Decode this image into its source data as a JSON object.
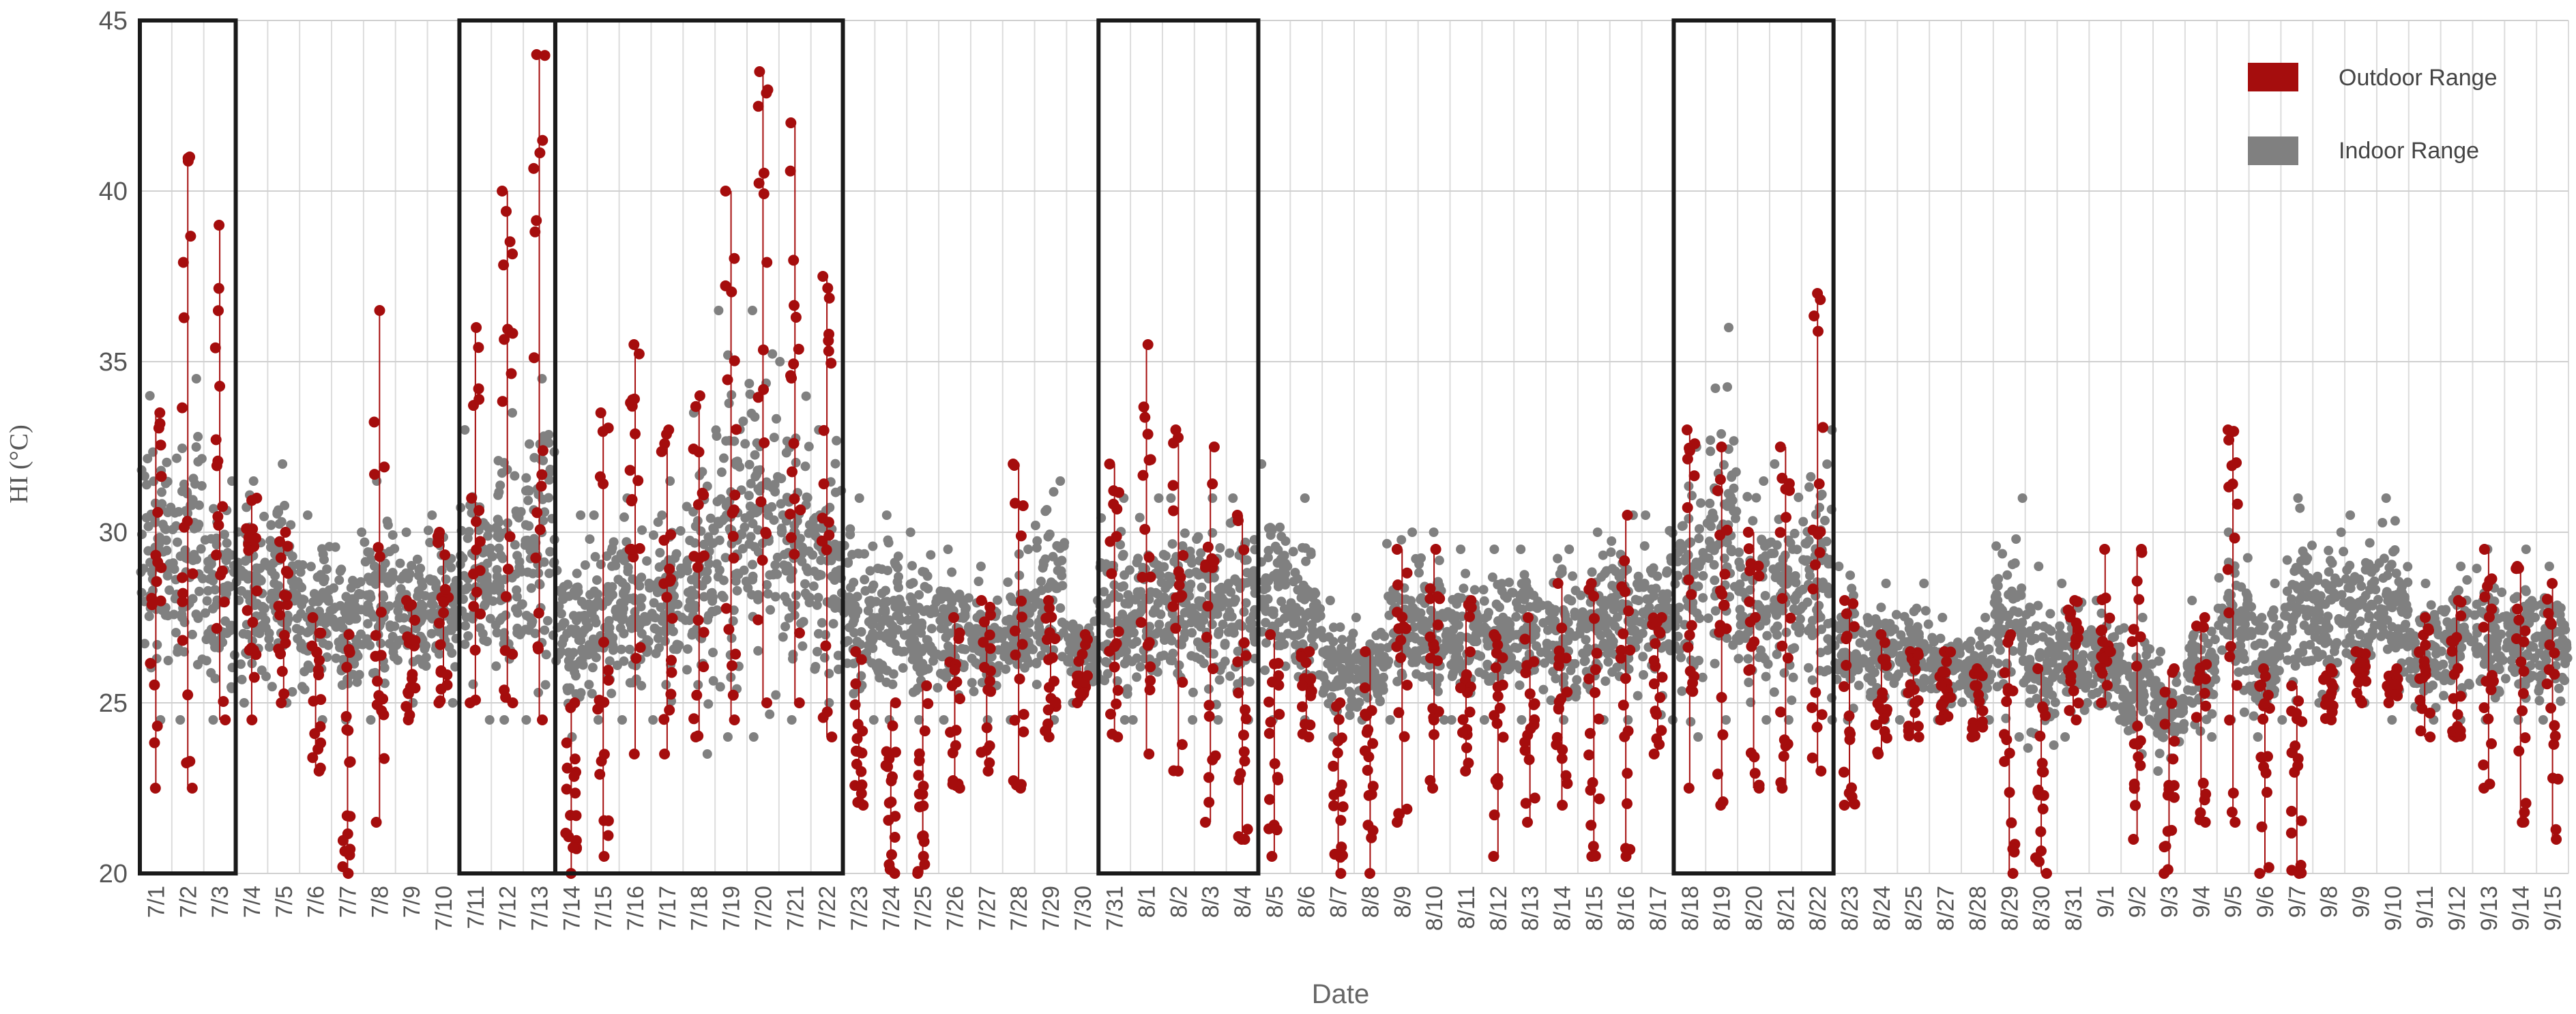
{
  "chart_data": {
    "type": "scatter",
    "title": "",
    "xlabel": "Date",
    "ylabel": "HI (°C)",
    "ylim": [
      20,
      45
    ],
    "yticks": [
      20,
      25,
      30,
      35,
      40,
      45
    ],
    "grid": true,
    "legend_position": "top-right",
    "categories": [
      "7/1",
      "7/2",
      "7/3",
      "7/4",
      "7/5",
      "7/6",
      "7/7",
      "7/8",
      "7/9",
      "7/10",
      "7/11",
      "7/12",
      "7/13",
      "7/14",
      "7/15",
      "7/16",
      "7/17",
      "7/18",
      "7/19",
      "7/20",
      "7/21",
      "7/22",
      "7/23",
      "7/24",
      "7/25",
      "7/26",
      "7/27",
      "7/28",
      "7/29",
      "7/30",
      "7/31",
      "8/1",
      "8/2",
      "8/3",
      "8/4",
      "8/5",
      "8/6",
      "8/7",
      "8/8",
      "8/9",
      "8/10",
      "8/11",
      "8/12",
      "8/13",
      "8/14",
      "8/15",
      "8/16",
      "8/17",
      "8/18",
      "8/19",
      "8/20",
      "8/21",
      "8/22",
      "8/23",
      "8/24",
      "8/25",
      "8/27",
      "8/28",
      "8/29",
      "8/30",
      "8/31",
      "9/1",
      "9/2",
      "9/3",
      "9/4",
      "9/5",
      "9/6",
      "9/7",
      "9/8",
      "9/9",
      "9/10",
      "9/11",
      "9/12",
      "9/13",
      "9/14",
      "9/15"
    ],
    "series": [
      {
        "name": "Outdoor Range",
        "color": "#a50d0d",
        "min": [
          22.5,
          22.5,
          24.5,
          24.5,
          25,
          23,
          20,
          21.5,
          24.5,
          25,
          25,
          25,
          24.5,
          20,
          20.5,
          23.5,
          23.5,
          24,
          24.5,
          25,
          25,
          24,
          22,
          20,
          20,
          22.5,
          23,
          22.5,
          24,
          25,
          24,
          23.5,
          23,
          21.5,
          21,
          20.5,
          24,
          20,
          20,
          21.5,
          22.5,
          23,
          20.5,
          21.5,
          22,
          20.5,
          20.5,
          23.5,
          22.5,
          22,
          22.5,
          22.5,
          23,
          22,
          23.5,
          24,
          24.5,
          24,
          20,
          20,
          24.5,
          25,
          21,
          20,
          21.5,
          21.5,
          20,
          20,
          24.5,
          25,
          25,
          24,
          24,
          22.5,
          21.5,
          21
        ],
        "max": [
          33.5,
          41,
          39,
          31,
          30,
          27.5,
          27,
          36.5,
          28,
          30,
          36,
          40,
          44,
          25,
          33.5,
          35.5,
          33,
          34,
          40,
          43.5,
          42,
          37.5,
          26.5,
          25,
          25.5,
          27.5,
          28,
          32,
          28,
          27,
          32,
          35.5,
          33,
          32.5,
          30.5,
          27,
          26.5,
          25,
          26.5,
          29.5,
          29.5,
          28,
          27,
          27.5,
          28.5,
          28.5,
          30.5,
          27.5,
          33,
          32.5,
          30,
          32.5,
          37,
          28,
          27,
          26.5,
          26.5,
          26,
          27,
          26,
          28,
          29.5,
          29.5,
          26,
          27.5,
          33,
          26,
          25.5,
          26,
          26.5,
          26,
          27.5,
          28,
          29.5,
          29,
          28.5
        ]
      },
      {
        "name": "Indoor Range",
        "color": "#808080",
        "min": [
          24.5,
          24.5,
          24.5,
          25,
          25,
          24.5,
          24.5,
          24.5,
          25,
          25,
          24.5,
          24.5,
          24.5,
          24,
          24.5,
          24.5,
          24.5,
          23.5,
          24,
          24,
          24.5,
          25,
          24.5,
          24.5,
          24.5,
          24.5,
          24.5,
          24.5,
          24.5,
          25,
          24.5,
          24.5,
          24.5,
          24.5,
          24.5,
          24.5,
          24.5,
          24,
          24.5,
          24.5,
          24.5,
          24.5,
          24.5,
          24.5,
          24.5,
          24.5,
          24.5,
          24.5,
          24,
          24.5,
          24.5,
          24.5,
          24.5,
          24.5,
          24.5,
          24.5,
          24.5,
          24.5,
          24,
          23,
          24,
          24.5,
          23.5,
          23,
          24,
          24.5,
          24,
          24.5,
          25,
          25,
          24.5,
          24.5,
          24.5,
          24.5,
          24.5,
          24.5
        ],
        "max": [
          34,
          34.5,
          31.5,
          31.5,
          32,
          30.5,
          30,
          31.5,
          30,
          30.5,
          33,
          33.5,
          34.5,
          30.5,
          30.5,
          31,
          31.5,
          33.5,
          36.5,
          36.5,
          35,
          33,
          31,
          30.5,
          30,
          29.5,
          29,
          29.5,
          31.5,
          28,
          31,
          31,
          31,
          31,
          31,
          32,
          31,
          28,
          27.5,
          30,
          30,
          29.5,
          29.5,
          29.5,
          29.5,
          30,
          30.5,
          30.5,
          32.5,
          36,
          31.5,
          32,
          33,
          29,
          28.5,
          28.5,
          27.5,
          27.5,
          31,
          29,
          28.5,
          28,
          27.5,
          26.5,
          28,
          30,
          28.5,
          31,
          30,
          30.5,
          31,
          28.5,
          29,
          29.5,
          29.5,
          29
        ]
      }
    ],
    "highlight_periods": [
      [
        "7/1",
        "7/3"
      ],
      [
        "7/11",
        "7/13"
      ],
      [
        "7/14",
        "7/22"
      ],
      [
        "7/31",
        "8/4"
      ],
      [
        "8/18",
        "8/22"
      ]
    ]
  }
}
